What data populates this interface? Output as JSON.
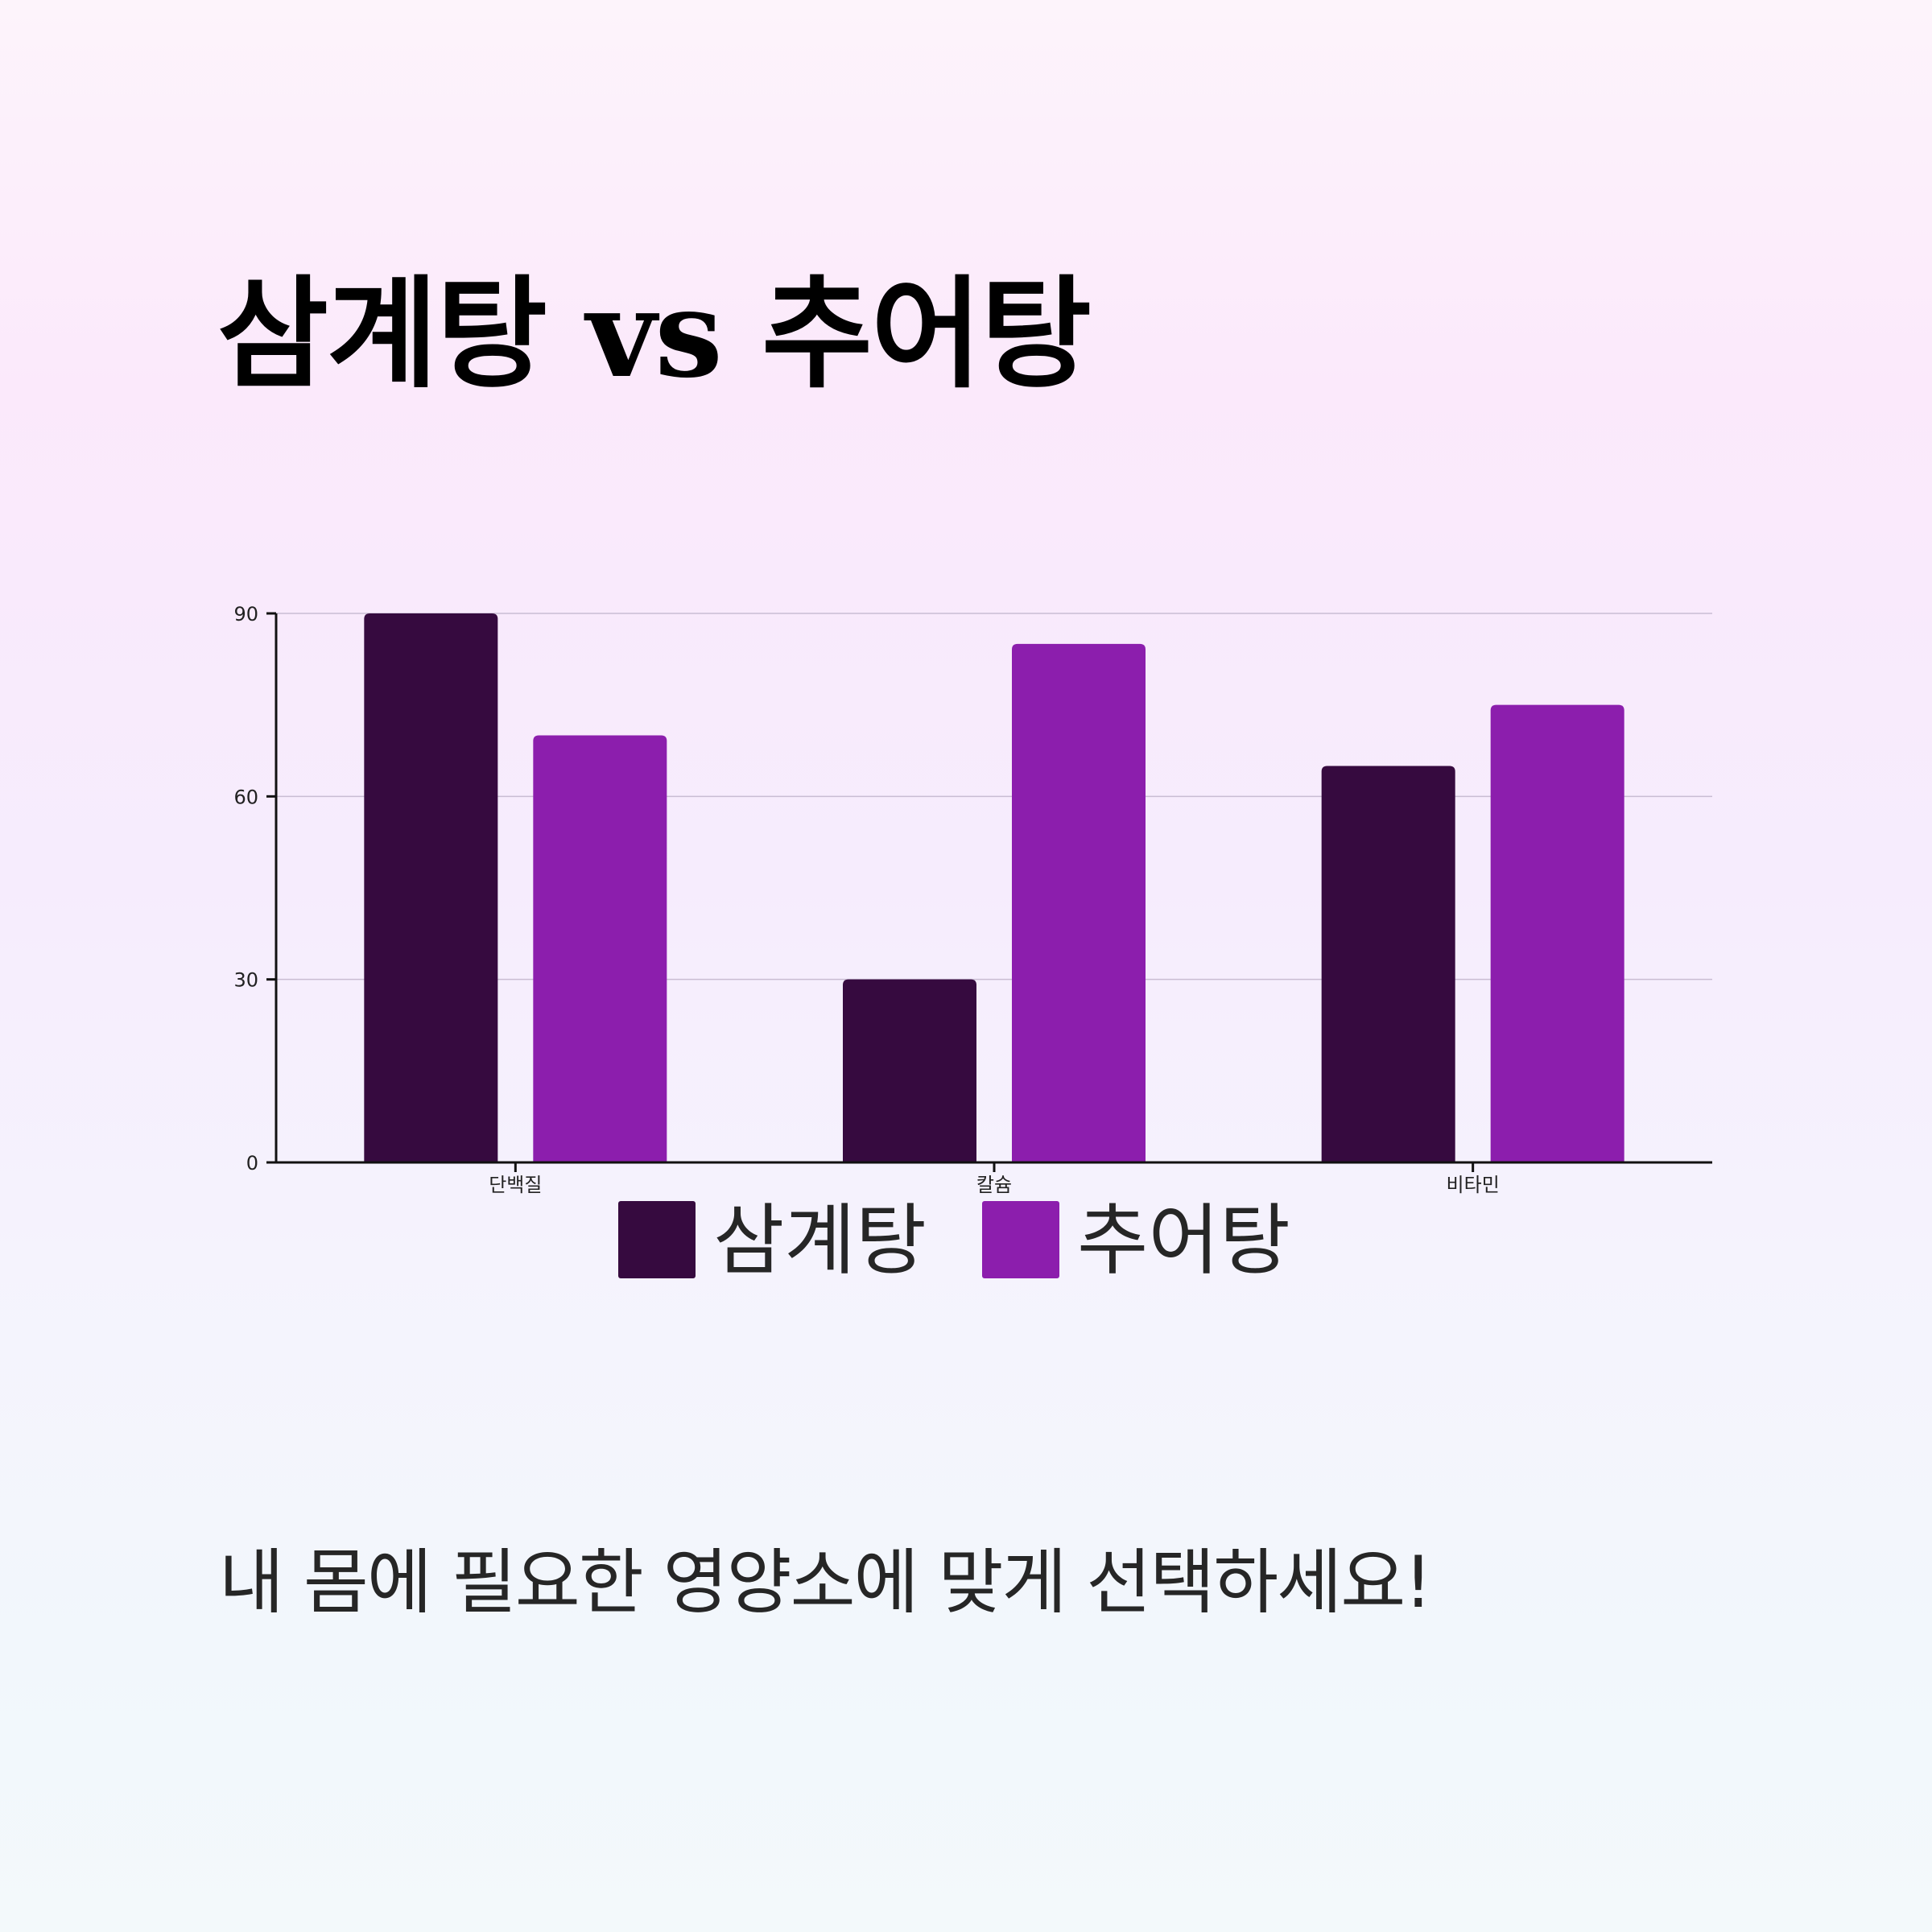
{
  "title": "삼계탕 vs 추어탕",
  "subtitle": "내 몸에 필요한 영양소에 맞게 선택하세요!",
  "chart_data": {
    "type": "bar",
    "categories": [
      "단백질",
      "칼슘",
      "비타민"
    ],
    "series": [
      {
        "name": "삼계탕",
        "values": [
          90,
          30,
          65
        ],
        "color": "#360a3f"
      },
      {
        "name": "추어탕",
        "values": [
          70,
          85,
          75
        ],
        "color": "#8c1ead"
      }
    ],
    "yticks": [
      0,
      30,
      60,
      90
    ],
    "ylim": [
      0,
      90
    ],
    "grid": true,
    "legend_position": "bottom-center"
  }
}
